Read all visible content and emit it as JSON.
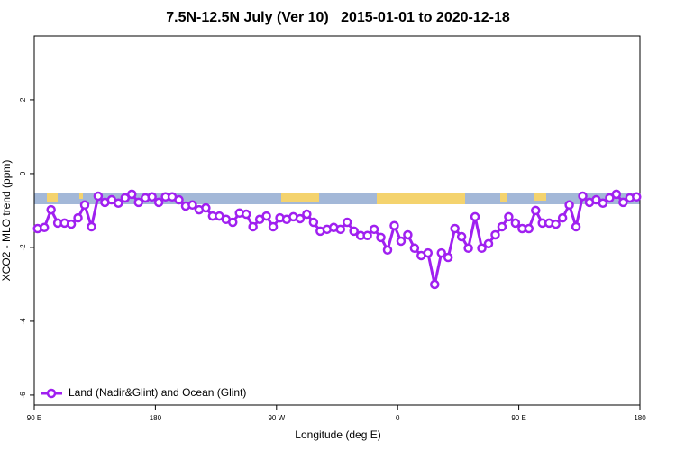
{
  "chart_data": {
    "type": "line",
    "title": "7.5N-12.5N July (Ver 10)   2015-01-01 to 2020-12-18",
    "x_label": "Longitude (deg E)",
    "y_label": "XCO2 - MLO trend (ppm)",
    "x": [
      92.5,
      97.5,
      102.5,
      107.5,
      112.5,
      117.5,
      122.5,
      127.5,
      132.5,
      137.5,
      142.5,
      147.5,
      152.5,
      157.5,
      162.5,
      167.5,
      172.5,
      177.5,
      182.5,
      187.5,
      192.5,
      197.5,
      202.5,
      207.5,
      212.5,
      217.5,
      222.5,
      227.5,
      232.5,
      237.5,
      242.5,
      247.5,
      252.5,
      257.5,
      262.5,
      267.5,
      272.5,
      277.5,
      282.5,
      287.5,
      292.5,
      297.5,
      302.5,
      307.5,
      312.5,
      317.5,
      322.5,
      327.5,
      332.5,
      337.5,
      342.5,
      347.5,
      352.5,
      357.5,
      362.5,
      367.5,
      372.5,
      377.5,
      382.5,
      387.5,
      392.5,
      397.5,
      402.5,
      407.5,
      412.5,
      417.5,
      422.5,
      427.5,
      432.5,
      437.5,
      442.5,
      447.5,
      452.5,
      457.5,
      462.5,
      467.5,
      472.5,
      477.5,
      482.5,
      487.5,
      492.5,
      497.5,
      502.5,
      507.5,
      512.5,
      517.5,
      522.5,
      527.5,
      532.5,
      537.5
    ],
    "series": [
      {
        "name": "Land (Nadir&Glint) and Ocean (Glint)",
        "color": "#a020f0",
        "values": [
          -1.49,
          -1.46,
          -0.98,
          -1.34,
          -1.34,
          -1.37,
          -1.2,
          -0.85,
          -1.44,
          -0.61,
          -0.78,
          -0.71,
          -0.8,
          -0.66,
          -0.56,
          -0.78,
          -0.66,
          -0.63,
          -0.78,
          -0.63,
          -0.63,
          -0.71,
          -0.88,
          -0.85,
          -0.98,
          -0.93,
          -1.15,
          -1.15,
          -1.24,
          -1.32,
          -1.07,
          -1.1,
          -1.44,
          -1.24,
          -1.15,
          -1.44,
          -1.2,
          -1.24,
          -1.17,
          -1.22,
          -1.1,
          -1.32,
          -1.56,
          -1.51,
          -1.46,
          -1.51,
          -1.32,
          -1.56,
          -1.68,
          -1.68,
          -1.51,
          -1.73,
          -2.07,
          -1.41,
          -1.83,
          -1.66,
          -2.02,
          -2.22,
          -2.15,
          -3.0,
          -2.15,
          -2.27,
          -1.49,
          -1.71,
          -2.02,
          -1.17,
          -2.02,
          -1.9,
          -1.66,
          -1.44,
          -1.17,
          -1.34,
          -1.49,
          -1.49,
          -1.0,
          -1.34,
          -1.34,
          -1.37,
          -1.2,
          -0.85,
          -1.44,
          -0.61,
          -0.78,
          -0.71,
          -0.8,
          -0.66,
          -0.56,
          -0.78,
          -0.66,
          -0.63
        ]
      }
    ],
    "xlim": [
      90,
      540
    ],
    "xticks": [
      {
        "value": 90,
        "label": "90 E"
      },
      180,
      {
        "value": 270,
        "label": "90 W"
      },
      {
        "value": 360,
        "label": "0"
      },
      {
        "value": 450,
        "label": "90 E"
      },
      {
        "value": 540,
        "label": "180"
      }
    ],
    "ylim": [
      -6.27,
      3.73
    ],
    "yticks": [
      -6,
      -4,
      -2,
      0,
      2
    ],
    "grid": false,
    "legend": "bottom-left"
  }
}
